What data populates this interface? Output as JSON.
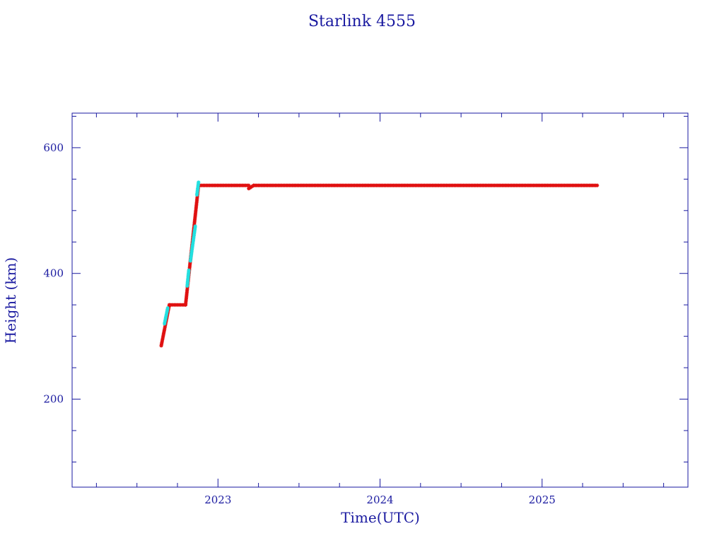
{
  "chart_data": {
    "type": "scatter",
    "title": "Starlink 4555",
    "xlabel": "Time(UTC)",
    "ylabel": "Height (km)",
    "xlim": [
      2022.1,
      2025.9
    ],
    "ylim": [
      60,
      655
    ],
    "x_ticks": [
      {
        "value": 2023,
        "label": "2023"
      },
      {
        "value": 2024,
        "label": "2024"
      },
      {
        "value": 2025,
        "label": "2025"
      }
    ],
    "y_ticks": [
      {
        "value": 200,
        "label": "200"
      },
      {
        "value": 400,
        "label": "400"
      },
      {
        "value": 600,
        "label": "600"
      }
    ],
    "grid": false,
    "colors": {
      "axis": "#1a1aa0",
      "primary": "#e01010",
      "secondary": "#22e0e0"
    },
    "series": [
      {
        "color": "#e01010",
        "segments": [
          [
            [
              2022.65,
              285
            ],
            [
              2022.7,
              350
            ]
          ],
          [
            [
              2022.7,
              350
            ],
            [
              2022.8,
              350
            ]
          ],
          [
            [
              2022.8,
              350
            ],
            [
              2022.88,
              540
            ]
          ],
          [
            [
              2022.88,
              540
            ],
            [
              2023.19,
              540
            ]
          ],
          [
            [
              2023.19,
              535
            ],
            [
              2023.22,
              540
            ]
          ],
          [
            [
              2023.22,
              540
            ],
            [
              2025.34,
              540
            ]
          ]
        ]
      },
      {
        "color": "#22e0e0",
        "segments": [
          [
            [
              2022.67,
              320
            ],
            [
              2022.69,
              345
            ]
          ],
          [
            [
              2022.81,
              380
            ],
            [
              2022.82,
              405
            ]
          ],
          [
            [
              2022.83,
              420
            ],
            [
              2022.86,
              475
            ]
          ],
          [
            [
              2022.87,
              525
            ],
            [
              2022.88,
              545
            ]
          ]
        ]
      }
    ]
  }
}
